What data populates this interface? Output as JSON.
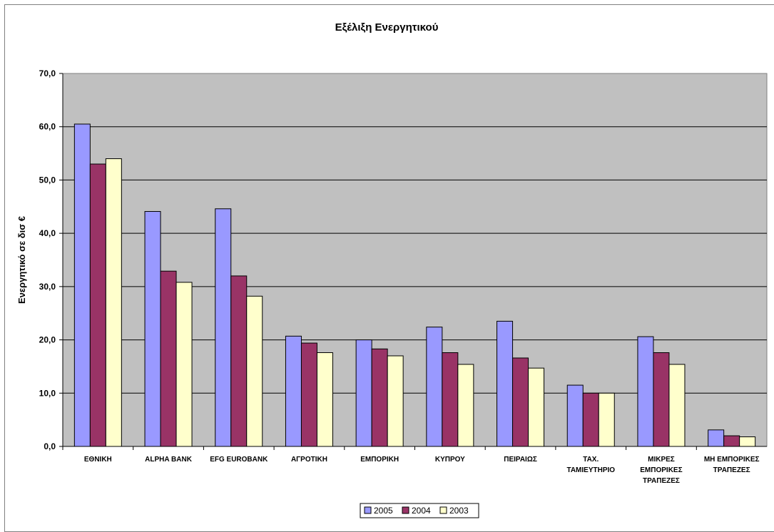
{
  "chart_data": {
    "type": "bar",
    "title": "Εξέλιξη Ενεργητικού",
    "ylabel": "Ενεργητικό σε δισ €",
    "xlabel": "",
    "ylim": [
      0,
      70
    ],
    "yticks": [
      "0,0",
      "10,0",
      "20,0",
      "30,0",
      "40,0",
      "50,0",
      "60,0",
      "70,0"
    ],
    "grid": true,
    "legend_position": "bottom",
    "categories": [
      [
        "ΕΘΝΙΚΗ"
      ],
      [
        "ALPHA BANK"
      ],
      [
        "EFG EUROBANK"
      ],
      [
        "ΑΓΡΟΤΙΚΗ"
      ],
      [
        "ΕΜΠΟΡΙΚΗ"
      ],
      [
        "ΚΥΠΡΟΥ"
      ],
      [
        "ΠΕΙΡΑΙΩΣ"
      ],
      [
        "ΤΑΧ.",
        "ΤΑΜΙΕΥΤΗΡΙΟ"
      ],
      [
        "ΜΙΚΡΕΣ",
        "ΕΜΠΟΡΙΚΕΣ",
        "ΤΡΑΠΕΖΕΣ"
      ],
      [
        "ΜΗ ΕΜΠΟΡΙΚΕΣ",
        "ΤΡΑΠΕΖΕΣ"
      ]
    ],
    "series": [
      {
        "name": "2005",
        "color": "#9999ff",
        "values": [
          60.5,
          44.1,
          44.6,
          20.7,
          20.0,
          22.4,
          23.5,
          11.5,
          20.6,
          3.1
        ]
      },
      {
        "name": "2004",
        "color": "#993366",
        "values": [
          53.0,
          32.9,
          32.0,
          19.4,
          18.3,
          17.6,
          16.6,
          10.0,
          17.6,
          2.0
        ]
      },
      {
        "name": "2003",
        "color": "#ffffcc",
        "values": [
          54.0,
          30.8,
          28.2,
          17.6,
          17.0,
          15.4,
          14.7,
          10.0,
          15.4,
          1.8
        ]
      }
    ],
    "plot_background": "#c0c0c0"
  }
}
